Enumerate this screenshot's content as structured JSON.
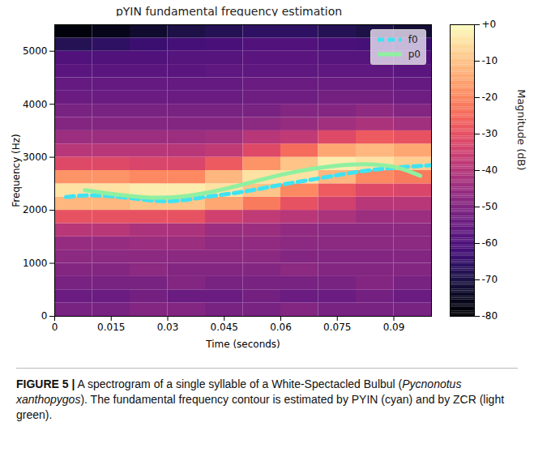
{
  "chart_data": {
    "type": "heatmap",
    "title": "pYIN fundamental frequency estimation",
    "x_label": "Time (seconds)",
    "y_label": "Frequency (Hz)",
    "xlim": [
      0,
      0.1
    ],
    "xticks": [
      0,
      0.015,
      0.03,
      0.045,
      0.06,
      0.075,
      0.09
    ],
    "ylim": [
      0,
      5500
    ],
    "yticks": [
      0,
      1000,
      2000,
      3000,
      4000,
      5000
    ],
    "time_bins": [
      0,
      0.01,
      0.02,
      0.03,
      0.04,
      0.05,
      0.06,
      0.07,
      0.08,
      0.09,
      0.1
    ],
    "frequency_bins": [
      0,
      250,
      500,
      750,
      1000,
      1250,
      1500,
      1750,
      2000,
      2250,
      2500,
      2750,
      3000,
      3250,
      3500,
      3750,
      4000,
      4250,
      4500,
      4750,
      5000,
      5250,
      5500
    ],
    "magnitude": [
      [
        -52,
        -52,
        -50,
        -50,
        -52,
        -52,
        -50,
        -52,
        -52,
        -52
      ],
      [
        -55,
        -55,
        -53,
        -55,
        -55,
        -53,
        -55,
        -55,
        -53,
        -55
      ],
      [
        -52,
        -52,
        -52,
        -50,
        -52,
        -52,
        -52,
        -52,
        -50,
        -52
      ],
      [
        -50,
        -50,
        -48,
        -50,
        -50,
        -50,
        -48,
        -50,
        -50,
        -50
      ],
      [
        -48,
        -48,
        -48,
        -48,
        -48,
        -48,
        -50,
        -50,
        -50,
        -50
      ],
      [
        -46,
        -46,
        -45,
        -45,
        -47,
        -47,
        -48,
        -48,
        -48,
        -48
      ],
      [
        -40,
        -40,
        -42,
        -42,
        -45,
        -45,
        -47,
        -48,
        -48,
        -48
      ],
      [
        -30,
        -30,
        -30,
        -30,
        -35,
        -38,
        -40,
        -42,
        -45,
        -45
      ],
      [
        -12,
        -12,
        -10,
        -10,
        -15,
        -22,
        -30,
        -35,
        -40,
        -40
      ],
      [
        -5,
        -5,
        -3,
        -3,
        -5,
        -10,
        -20,
        -28,
        -32,
        -33
      ],
      [
        -18,
        -18,
        -20,
        -20,
        -12,
        -5,
        -5,
        -12,
        -20,
        -22
      ],
      [
        -32,
        -32,
        -33,
        -33,
        -28,
        -18,
        -10,
        -3,
        -5,
        -8
      ],
      [
        -40,
        -40,
        -40,
        -40,
        -38,
        -32,
        -25,
        -15,
        -12,
        -15
      ],
      [
        -45,
        -45,
        -45,
        -45,
        -44,
        -40,
        -38,
        -32,
        -28,
        -30
      ],
      [
        -50,
        -50,
        -50,
        -50,
        -50,
        -48,
        -46,
        -44,
        -42,
        -44
      ],
      [
        -52,
        -52,
        -52,
        -52,
        -52,
        -52,
        -50,
        -50,
        -48,
        -50
      ],
      [
        -55,
        -55,
        -55,
        -55,
        -55,
        -54,
        -54,
        -53,
        -53,
        -54
      ],
      [
        -56,
        -56,
        -56,
        -56,
        -56,
        -55,
        -55,
        -55,
        -55,
        -56
      ],
      [
        -58,
        -58,
        -58,
        -58,
        -57,
        -57,
        -57,
        -57,
        -57,
        -58
      ],
      [
        -60,
        -60,
        -60,
        -59,
        -59,
        -58,
        -58,
        -59,
        -59,
        -60
      ],
      [
        -68,
        -66,
        -64,
        -62,
        -61,
        -60,
        -60,
        -61,
        -62,
        -64
      ],
      [
        -78,
        -76,
        -73,
        -70,
        -68,
        -66,
        -66,
        -68,
        -70,
        -72
      ]
    ],
    "colorbar": {
      "label": "Magnitude (dB)",
      "range": [
        -80,
        0
      ],
      "ticks": [
        {
          "value": 0,
          "label": "+0"
        },
        -10,
        -20,
        -30,
        -40,
        -50,
        -60,
        -70,
        -80
      ]
    },
    "series": [
      {
        "name": "f0",
        "type": "line",
        "color": "#3fe3f2",
        "line_style": "dashed",
        "x": [
          0.003,
          0.01,
          0.02,
          0.03,
          0.04,
          0.05,
          0.06,
          0.07,
          0.08,
          0.09,
          0.1
        ],
        "values": [
          2250,
          2280,
          2230,
          2170,
          2250,
          2350,
          2480,
          2600,
          2720,
          2800,
          2850
        ]
      },
      {
        "name": "p0",
        "type": "line",
        "color": "#8ef0a0",
        "line_style": "solid",
        "x": [
          0.008,
          0.015,
          0.025,
          0.035,
          0.045,
          0.055,
          0.065,
          0.075,
          0.082,
          0.09,
          0.097
        ],
        "values": [
          2380,
          2310,
          2240,
          2270,
          2400,
          2580,
          2740,
          2840,
          2870,
          2820,
          2650
        ]
      }
    ],
    "legend": "upper right",
    "caption": [
      "FIGURE 5 |",
      " A spectrogram of a single syllable of a White-Spectacled Bulbul (",
      "Pycnonotus xanthopygos",
      "). The fundamental frequency contour is estimated by PYIN (cyan) and by ZCR (light green)."
    ]
  }
}
